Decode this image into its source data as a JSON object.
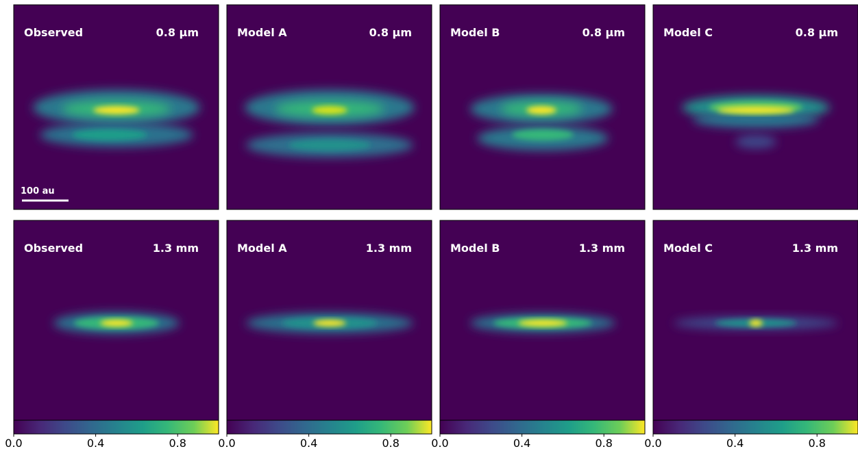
{
  "panels": [
    [
      {
        "label": "Observed",
        "band": "0.8 μm"
      },
      {
        "label": "Model A",
        "band": "0.8 μm"
      },
      {
        "label": "Model B",
        "band": "0.8 μm"
      },
      {
        "label": "Model C",
        "band": "0.8 μm"
      }
    ],
    [
      {
        "label": "Observed",
        "band": "1.3 mm"
      },
      {
        "label": "Model A",
        "band": "1.3 mm"
      },
      {
        "label": "Model B",
        "band": "1.3 mm"
      },
      {
        "label": "Model C",
        "band": "1.3 mm"
      }
    ]
  ],
  "scale_bar": "100 au",
  "colorbar": {
    "lim": [
      0,
      1
    ],
    "ticks": [
      {
        "value": 0,
        "label": "0.0"
      },
      {
        "value": 0.4,
        "label": "0.4"
      },
      {
        "value": 0.8,
        "label": "0.8"
      }
    ]
  }
}
